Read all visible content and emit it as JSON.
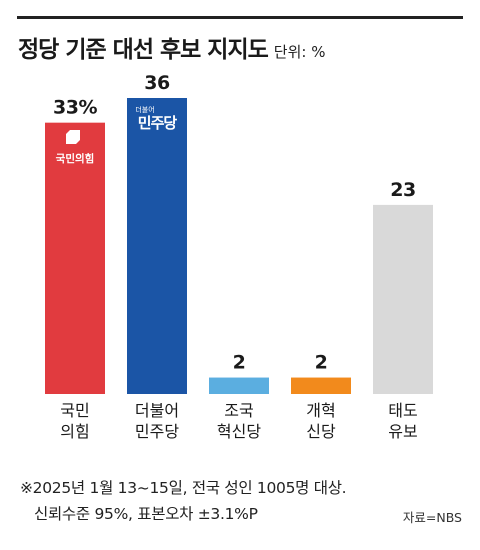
{
  "title": "정당 기준 대선 후보 지지도",
  "unit": "단위: %",
  "chart_data": {
    "type": "bar",
    "categories": [
      [
        "국민",
        "의힘"
      ],
      [
        "더불어",
        "민주당"
      ],
      [
        "조국",
        "혁신당"
      ],
      [
        "개혁",
        "신당"
      ],
      [
        "태도",
        "유보"
      ]
    ],
    "values": [
      33,
      36,
      2,
      2,
      23
    ],
    "value_labels": [
      "33%",
      "36",
      "2",
      "2",
      "23"
    ],
    "colors": [
      "#e13b3f",
      "#1b55a6",
      "#5baee0",
      "#f28a1c",
      "#d9d9d9"
    ],
    "logos": [
      "국민의힘",
      "민주당"
    ],
    "logo_prefix": "더불어",
    "ylim": [
      0,
      36
    ],
    "grid": false
  },
  "footnote": {
    "line1": "※2025년 1월 13~15일, 전국 성인 1005명 대상.",
    "line2": "신뢰수준 95%, 표본오차 ±3.1%P"
  },
  "source": "자료=NBS"
}
